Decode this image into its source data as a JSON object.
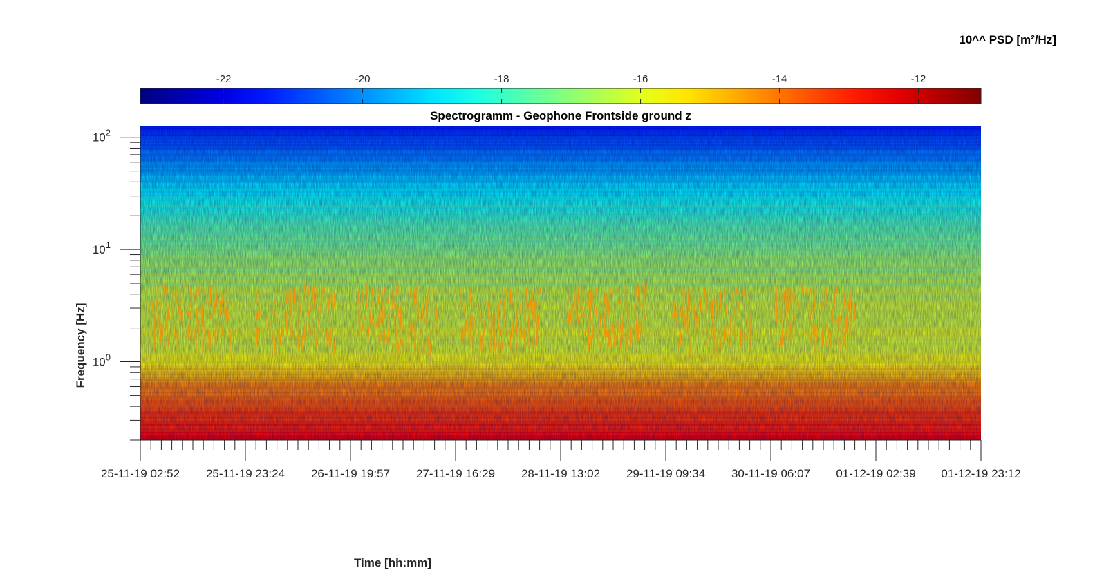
{
  "chart_data": {
    "type": "heatmap",
    "title": "Spectrogramm - Geophone Frontside ground z",
    "xlabel": "Time [hh:mm]",
    "ylabel": "Frequency [Hz]",
    "y_scale": "log",
    "ylim": [
      0.2,
      125
    ],
    "y_ticks": [
      {
        "base": "10",
        "exp": "2",
        "value": 100
      },
      {
        "base": "10",
        "exp": "1",
        "value": 10
      },
      {
        "base": "10",
        "exp": "0",
        "value": 1
      }
    ],
    "x_ticks": [
      "25-11-19 02:52",
      "25-11-19 23:24",
      "26-11-19 19:57",
      "27-11-19 16:29",
      "28-11-19 13:02",
      "29-11-19 09:34",
      "30-11-19 06:07",
      "01-12-19 02:39",
      "01-12-19 23:12"
    ],
    "colorbar": {
      "label": "10^^ PSD [m²/Hz]",
      "range": [
        -23.2,
        -11.1
      ],
      "ticks": [
        "-22",
        "-20",
        "-18",
        "-16",
        "-14",
        "-12"
      ],
      "tick_values": [
        -22,
        -20,
        -18,
        -16,
        -14,
        -12
      ],
      "colormap": "jet",
      "location": "top"
    },
    "psd_profile": {
      "freq_hz": [
        125,
        80,
        50,
        30,
        20,
        10,
        6,
        4,
        3,
        2,
        1.5,
        1.0,
        0.8,
        0.6,
        0.4,
        0.3,
        0.2
      ],
      "log10_psd": [
        -21.4,
        -20.5,
        -19.6,
        -18.6,
        -18.0,
        -17.1,
        -16.6,
        -16.3,
        -16.2,
        -16.1,
        -16.0,
        -15.7,
        -15.1,
        -14.2,
        -13.6,
        -13.1,
        -12.6
      ]
    },
    "daily_activity_band_hz": [
      1.5,
      5
    ],
    "daily_activity_peak_log10_psd": -14.3
  }
}
